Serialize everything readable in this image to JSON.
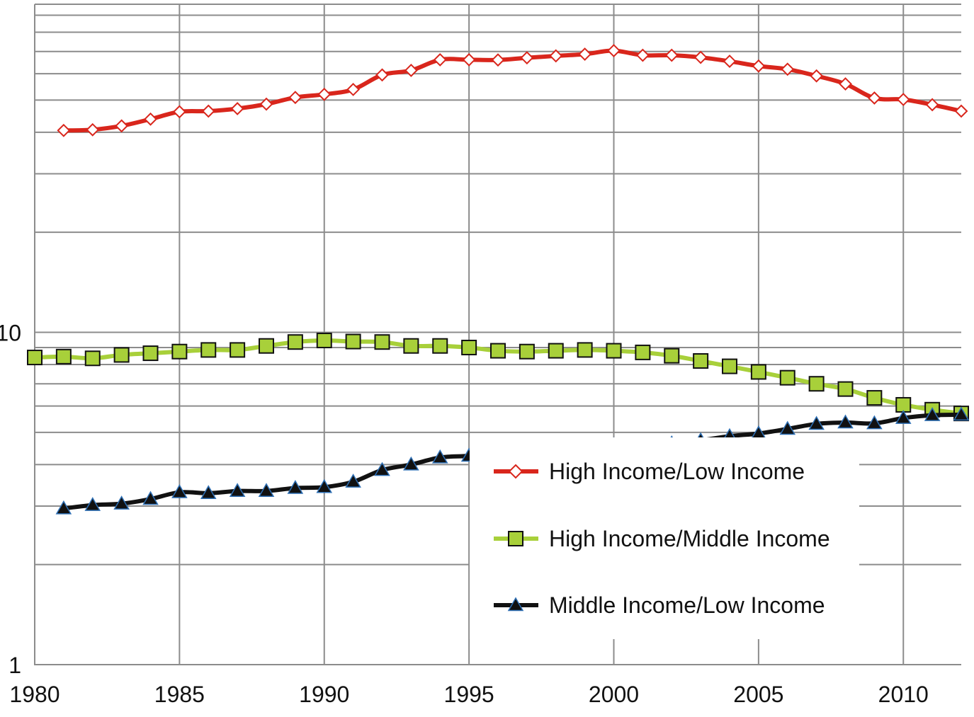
{
  "chart_data": {
    "type": "line",
    "title": "",
    "xlabel": "",
    "ylabel": "",
    "yscale": "log",
    "xlim": [
      1980,
      2012
    ],
    "ylim": [
      1,
      100
    ],
    "x_ticks": [
      1980,
      1985,
      1990,
      1995,
      2000,
      2005,
      2010
    ],
    "x_tick_labels": [
      "1980",
      "1985",
      "1990",
      "1995",
      "2000",
      "2005",
      "2010"
    ],
    "y_tick_labels": [
      {
        "value": 10,
        "label": "10"
      },
      {
        "value": 1,
        "label": "1"
      }
    ],
    "grid": true,
    "legend_position": "lower-right",
    "x": [
      1981,
      1982,
      1983,
      1984,
      1985,
      1986,
      1987,
      1988,
      1989,
      1990,
      1991,
      1992,
      1993,
      1994,
      1995,
      1996,
      1997,
      1998,
      1999,
      2000,
      2001,
      2002,
      2003,
      2004,
      2005,
      2006,
      2007,
      2008,
      2009,
      2010,
      2011,
      2012
    ],
    "series": [
      {
        "name": "High Income/Low Income",
        "color": "#d9261c",
        "marker": "diamond-open",
        "x": [
          1981,
          1982,
          1983,
          1984,
          1985,
          1986,
          1987,
          1988,
          1989,
          1990,
          1991,
          1992,
          1993,
          1994,
          1995,
          1996,
          1997,
          1998,
          1999,
          2000,
          2001,
          2002,
          2003,
          2004,
          2005,
          2006,
          2007,
          2008,
          2009,
          2010,
          2011,
          2012
        ],
        "values": [
          40.5,
          40.7,
          41.8,
          43.8,
          46.1,
          46.3,
          47.1,
          48.6,
          50.9,
          52.0,
          53.8,
          59.5,
          61.4,
          66.1,
          66.1,
          66.0,
          67.0,
          67.9,
          68.7,
          70.4,
          68.2,
          68.2,
          67.2,
          65.4,
          63.3,
          61.9,
          59.1,
          55.9,
          50.7,
          50.2,
          48.4,
          46.3
        ]
      },
      {
        "name": "High Income/Middle Income",
        "color": "#a8d03a",
        "marker": "square",
        "x": [
          1980,
          1981,
          1982,
          1983,
          1984,
          1985,
          1986,
          1987,
          1988,
          1989,
          1990,
          1991,
          1992,
          1993,
          1994,
          1995,
          1996,
          1997,
          1998,
          1999,
          2000,
          2001,
          2002,
          2003,
          2004,
          2005,
          2006,
          2007,
          2008,
          2009,
          2010,
          2011,
          2012
        ],
        "values": [
          8.4,
          8.45,
          8.35,
          8.55,
          8.65,
          8.75,
          8.85,
          8.85,
          9.1,
          9.35,
          9.45,
          9.38,
          9.35,
          9.1,
          9.1,
          9.0,
          8.8,
          8.75,
          8.8,
          8.85,
          8.8,
          8.7,
          8.5,
          8.2,
          7.9,
          7.6,
          7.3,
          7.0,
          6.75,
          6.35,
          6.05,
          5.85,
          5.7
        ]
      },
      {
        "name": "Middle Income/Low Income",
        "color": "#111111",
        "marker": "triangle",
        "x": [
          1981,
          1982,
          1983,
          1984,
          1985,
          1986,
          1987,
          1988,
          1989,
          1990,
          1991,
          1992,
          1993,
          1994,
          1995,
          1996,
          1997,
          1998,
          1999,
          2000,
          2001,
          2002,
          2003,
          2004,
          2005,
          2006,
          2007,
          2008,
          2009,
          2010,
          2011,
          2012
        ],
        "values": [
          2.95,
          3.02,
          3.05,
          3.15,
          3.3,
          3.28,
          3.33,
          3.33,
          3.4,
          3.42,
          3.55,
          3.85,
          4.0,
          4.2,
          4.25,
          4.35,
          4.45,
          4.45,
          4.45,
          4.58,
          4.53,
          4.63,
          4.73,
          4.87,
          4.96,
          5.12,
          5.3,
          5.35,
          5.32,
          5.52,
          5.63,
          5.65
        ]
      }
    ]
  }
}
